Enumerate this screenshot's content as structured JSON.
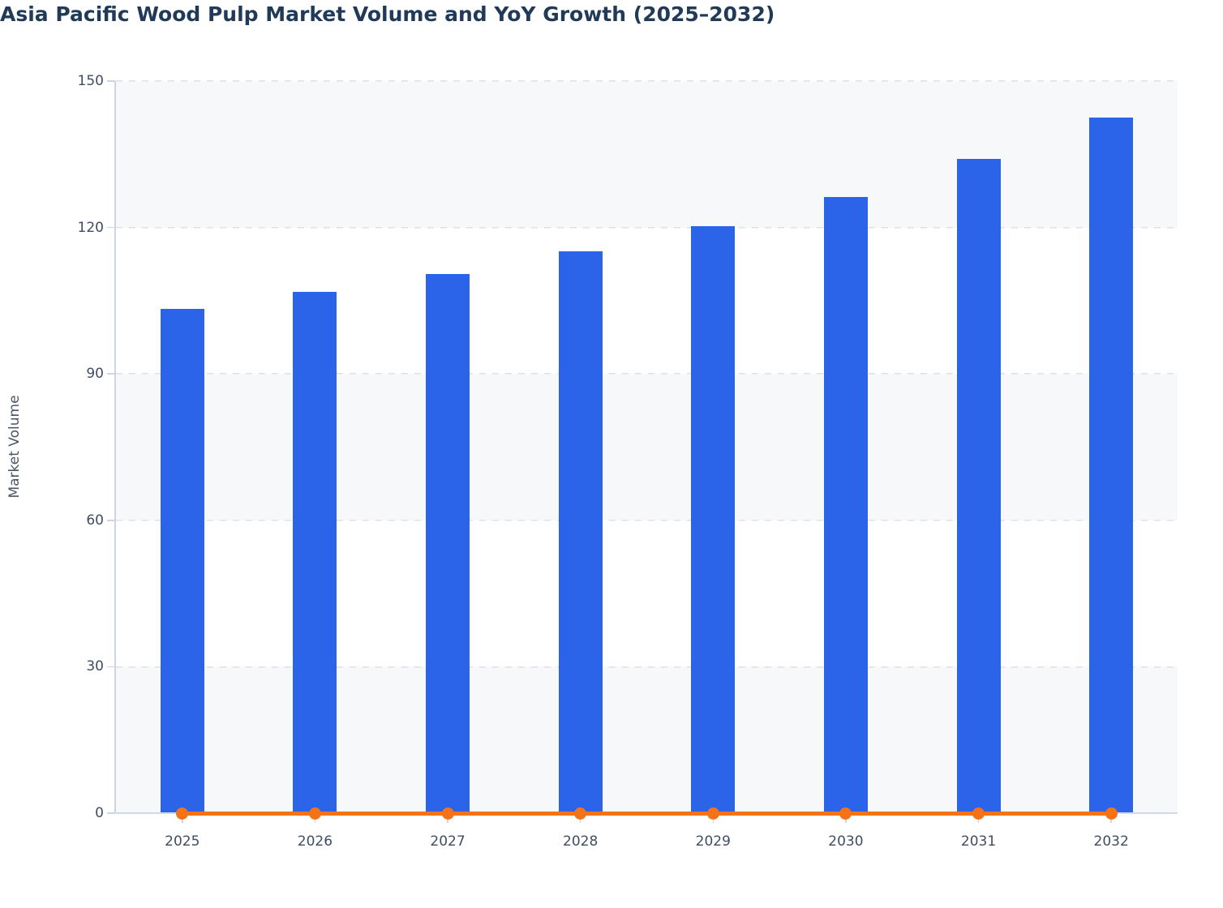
{
  "chart_data": {
    "type": "bar",
    "subtype": "bar-with-line-overlay",
    "title": "Asia Pacific Wood Pulp Market Volume and YoY Growth (2025–2032)",
    "xlabel": "",
    "ylabel": "Market Volume",
    "categories": [
      "2025",
      "2026",
      "2027",
      "2028",
      "2029",
      "2030",
      "2031",
      "2032"
    ],
    "series": [
      {
        "name": "Market Volume",
        "type": "bar",
        "values": [
          103.3,
          106.8,
          110.5,
          115.1,
          120.3,
          126.3,
          134.1,
          142.6
        ]
      },
      {
        "name": "YoY Growth",
        "type": "line",
        "values": [
          0,
          0,
          0,
          0,
          0,
          0,
          0,
          0
        ],
        "note": "line renders flat at ~0 on the shared Market Volume axis, with a marker dot at every year"
      }
    ],
    "ylim": [
      0,
      150
    ],
    "y_ticks": [
      0,
      30,
      60,
      90,
      120,
      150
    ],
    "grid": "horizontal dashed gridlines at every y tick",
    "plot_background": "alternating horizontal bands, shaded band at top (120-150), then alternating down to 0",
    "legend": "none"
  },
  "colors": {
    "bar": "#2b64e8",
    "line": "#f57316",
    "title": "#213a57",
    "tick_label": "#3f4d63",
    "axis_label": "#4a5568",
    "axis_line": "#ccd4e8",
    "gridline": "#dee1e8",
    "band_shaded": "#f7f8fa",
    "band_plain": "#ffffff",
    "background": "#ffffff"
  }
}
